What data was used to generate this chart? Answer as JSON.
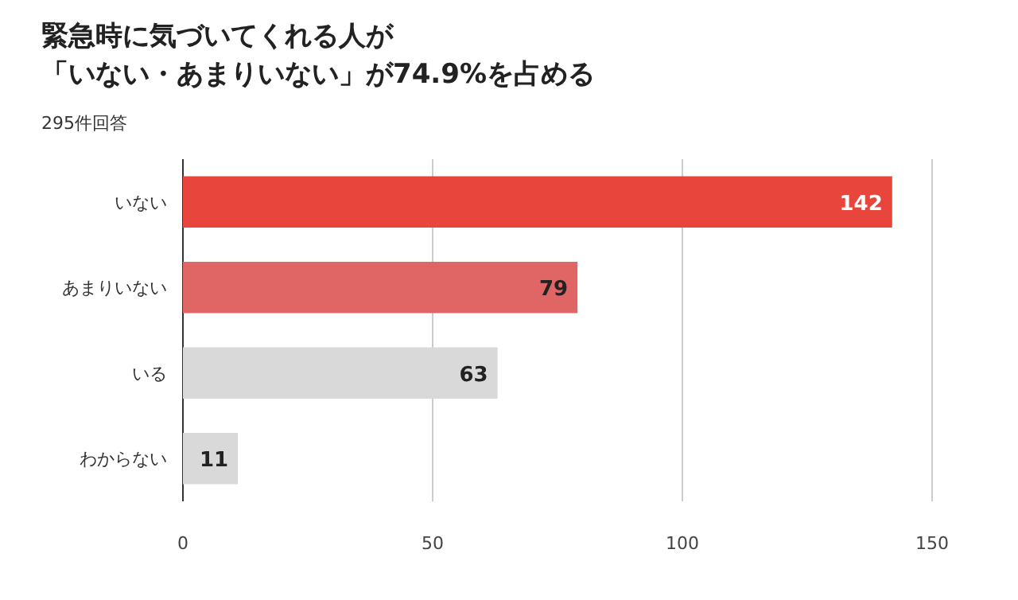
{
  "chart_data": {
    "type": "bar",
    "orientation": "horizontal",
    "title": "緊急時に気づいてくれる人が",
    "subtitle": "「いない・あまりいない」が74.9%を占める",
    "annotations": [
      "295件回答"
    ],
    "categories": [
      "いない",
      "あまりいない",
      "いる",
      "わからない"
    ],
    "values": [
      142,
      79,
      63,
      11
    ],
    "colors": [
      "#e8453c",
      "#e06666",
      "#d9d9d9",
      "#d9d9d9"
    ],
    "xlim": [
      0,
      150
    ],
    "xticks": [
      0,
      50,
      100,
      150
    ],
    "grid": "x",
    "data_labels": true
  }
}
